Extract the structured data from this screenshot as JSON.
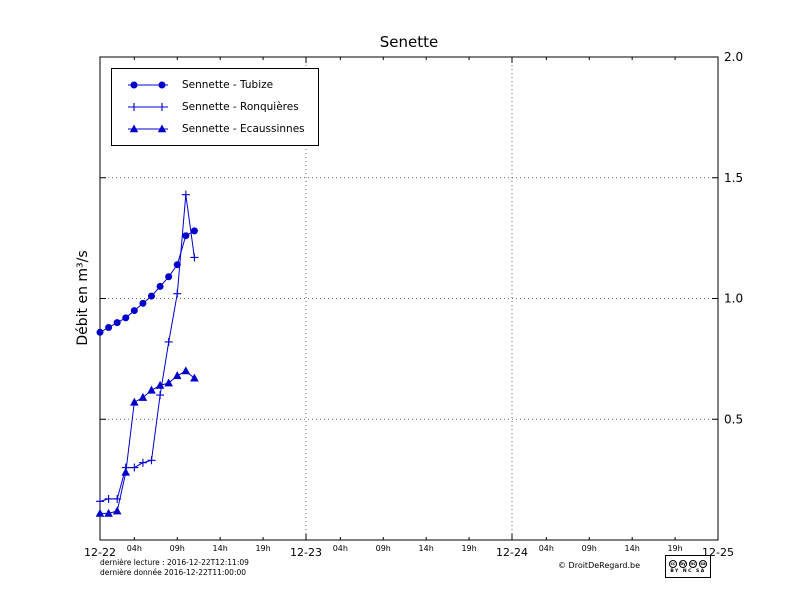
{
  "chart_data": {
    "type": "line",
    "title": "Senette",
    "ylabel": "Débit en m³/s",
    "xlabel": "",
    "ylim": [
      0,
      2.0
    ],
    "xlim_hours": [
      0,
      72
    ],
    "line_color": "#0000cc",
    "grid": {
      "style": "dotted",
      "vertical_hours": [
        24,
        48
      ],
      "horizontal_values": [
        0.5,
        1.0,
        1.5
      ]
    },
    "x_major_ticks": [
      {
        "hour": 0,
        "label": "12-22"
      },
      {
        "hour": 24,
        "label": "12-23"
      },
      {
        "hour": 48,
        "label": "12-24"
      },
      {
        "hour": 72,
        "label": "12-25"
      }
    ],
    "x_minor_hours": [
      4,
      9,
      14,
      19,
      28,
      33,
      38,
      43,
      52,
      57,
      62,
      67
    ],
    "x_minor_hour_labels": [
      "04h",
      "09h",
      "14h",
      "19h"
    ],
    "y_tick_values": [
      0.5,
      1.0,
      1.5,
      2.0
    ],
    "y_tick_labels": [
      "0.5",
      "1.0",
      "1.5",
      "2.0"
    ],
    "legend_position": "upper-left",
    "series": [
      {
        "name": "Sennette - Tubize",
        "marker": "circle",
        "x_hours": [
          0,
          1,
          2,
          3,
          4,
          5,
          6,
          7,
          8,
          9,
          10,
          11
        ],
        "values": [
          0.86,
          0.88,
          0.9,
          0.92,
          0.95,
          0.98,
          1.01,
          1.05,
          1.09,
          1.14,
          1.26,
          1.28
        ]
      },
      {
        "name": "Sennette - Ronquières",
        "marker": "plus",
        "x_hours": [
          0,
          1,
          2,
          3,
          4,
          5,
          6,
          7,
          8,
          9,
          10,
          11
        ],
        "values": [
          0.16,
          0.17,
          0.17,
          0.3,
          0.3,
          0.32,
          0.33,
          0.6,
          0.82,
          1.02,
          1.43,
          1.17
        ]
      },
      {
        "name": "Sennette - Ecaussinnes",
        "marker": "triangle",
        "x_hours": [
          0,
          1,
          2,
          3,
          4,
          5,
          6,
          7,
          8,
          9,
          10,
          11
        ],
        "values": [
          0.11,
          0.11,
          0.12,
          0.28,
          0.57,
          0.59,
          0.62,
          0.64,
          0.65,
          0.68,
          0.7,
          0.67
        ]
      }
    ]
  },
  "footer": {
    "last_read": "dernière lecture : 2016-12-22T12:11:09",
    "last_data": "dernière donnée  2016-12-22T11:00:00",
    "copyright": "© DroitDeRegard.be",
    "license": {
      "circles": [
        "cc",
        "by",
        "nc",
        "sa"
      ],
      "caption": "BY NC SA"
    }
  }
}
